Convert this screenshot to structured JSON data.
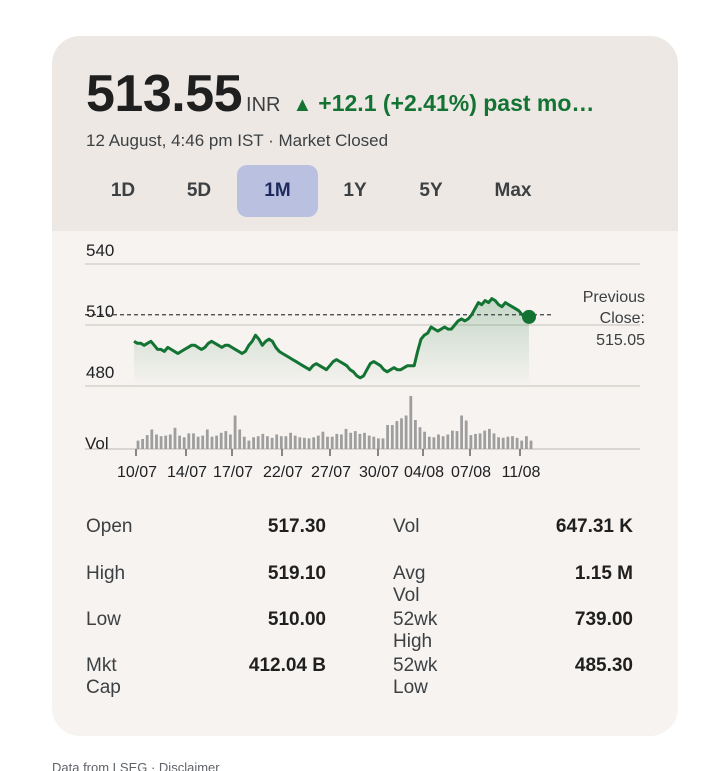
{
  "quote": {
    "price": "513.55",
    "currency": "INR",
    "change_arrow": "▲",
    "change": "+12.1 (+2.41%) past mo…",
    "timestamp": "12 August, 4:46 pm IST · Market Closed",
    "change_color": "#137333"
  },
  "tabs": [
    {
      "label": "1D",
      "active": false
    },
    {
      "label": "5D",
      "active": false
    },
    {
      "label": "1M",
      "active": true
    },
    {
      "label": "1Y",
      "active": false
    },
    {
      "label": "5Y",
      "active": false
    },
    {
      "label": "Max",
      "active": false
    }
  ],
  "chart_data": {
    "type": "line",
    "ylim": [
      474,
      548
    ],
    "yticks": [
      540,
      510,
      480
    ],
    "xticks": [
      "10/07",
      "14/07",
      "17/07",
      "22/07",
      "27/07",
      "30/07",
      "04/08",
      "07/08",
      "11/08"
    ],
    "previous_close": 515.05,
    "previous_close_label": [
      "Previous",
      "Close:",
      "515.05"
    ],
    "volume_label": "Vol",
    "line_color": "#137333",
    "prices": [
      502,
      501,
      501,
      500,
      501,
      502,
      500,
      498,
      498,
      497,
      499,
      498,
      497,
      496,
      497,
      498,
      499,
      500,
      500,
      499,
      498,
      499,
      501,
      502,
      501,
      500,
      499,
      500,
      500,
      499,
      498,
      497,
      496,
      497,
      500,
      502,
      505,
      503,
      500,
      502,
      503,
      502,
      499,
      497,
      496,
      495,
      494,
      493,
      492,
      491,
      490,
      489,
      488,
      490,
      491,
      490,
      489,
      488,
      490,
      492,
      493,
      492,
      491,
      490,
      488,
      487,
      485,
      484,
      485,
      488,
      491,
      492,
      491,
      490,
      488,
      487,
      488,
      489,
      488,
      488,
      489,
      490,
      490,
      490,
      497,
      503,
      505,
      506,
      509,
      508,
      507,
      508,
      509,
      508,
      508,
      510,
      512,
      513,
      512,
      513,
      515,
      518,
      521,
      520,
      522,
      521,
      523,
      522,
      520,
      519,
      521,
      520,
      519,
      518,
      517,
      515,
      514,
      514
    ],
    "volumes": [
      1.5,
      1.8,
      2.5,
      3.5,
      2.6,
      2.3,
      2.4,
      2.6,
      3.8,
      2.4,
      2.1,
      2.8,
      2.8,
      2.2,
      2.4,
      3.5,
      2.2,
      2.4,
      2.9,
      3.2,
      2.6,
      6.0,
      3.5,
      2.2,
      1.5,
      2.1,
      2.3,
      2.7,
      2.3,
      2.0,
      2.6,
      2.3,
      2.3,
      2.9,
      2.4,
      2.1,
      2.0,
      1.9,
      2.1,
      2.4,
      3.1,
      2.2,
      2.2,
      2.7,
      2.6,
      3.6,
      2.9,
      3.2,
      2.7,
      2.9,
      2.4,
      2.2,
      1.9,
      1.9,
      4.3,
      4.3,
      5.0,
      5.5,
      6.0,
      9.5,
      5.2,
      3.9,
      3.1,
      2.2,
      2.1,
      2.6,
      2.3,
      2.6,
      3.3,
      3.2,
      6.0,
      5.1,
      2.5,
      2.7,
      2.8,
      3.3,
      3.6,
      2.8,
      2.1,
      2.0,
      2.2,
      2.3,
      2.0,
      1.5,
      2.3,
      1.5
    ]
  },
  "stats": {
    "open_label": "Open",
    "open_value": "517.30",
    "high_label": "High",
    "high_value": "519.10",
    "low_label": "Low",
    "low_value": "510.00",
    "mktcap_label": "Mkt Cap",
    "mktcap_value": "412.04 B",
    "vol_label": "Vol",
    "vol_value": "647.31 K",
    "avgvol_label": "Avg Vol",
    "avgvol_value": "1.15 M",
    "high52_label": "52wk High",
    "high52_value": "739.00",
    "low52_label": "52wk Low",
    "low52_value": "485.30"
  },
  "footer": {
    "text": "Data from LSEG · Disclaimer"
  }
}
